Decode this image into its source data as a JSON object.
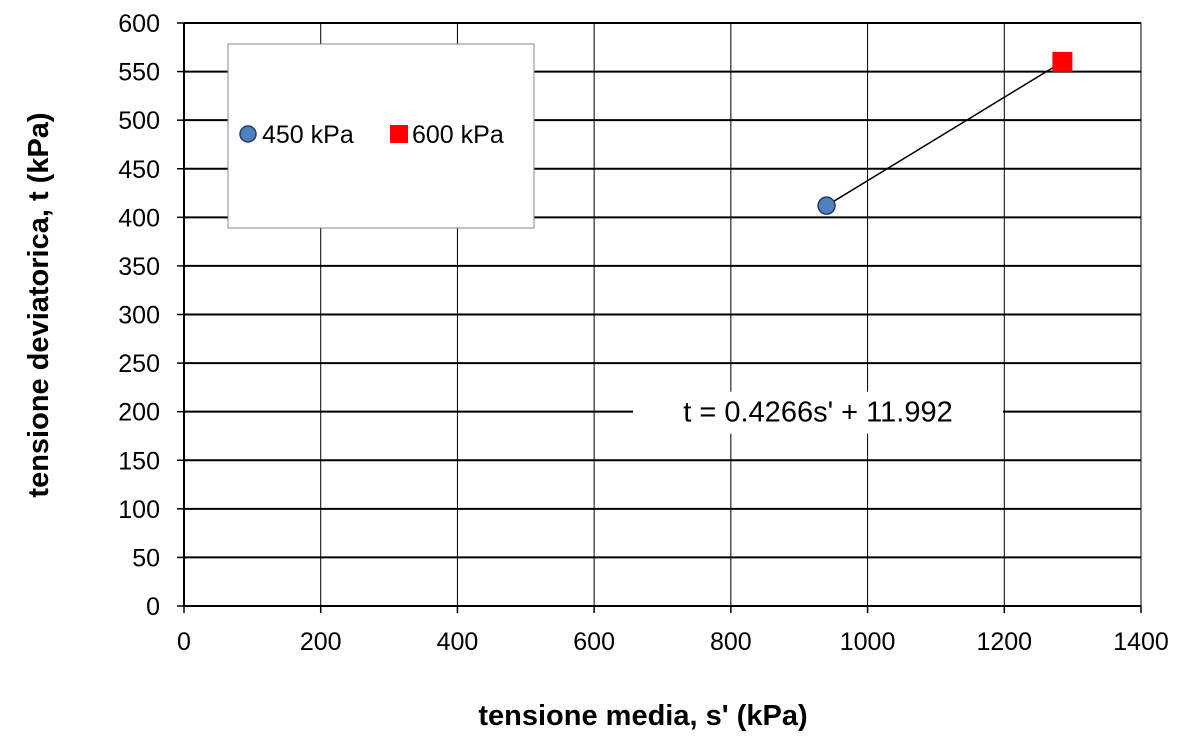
{
  "chart_data": {
    "type": "scatter",
    "title": "",
    "xlabel": "tensione media, s' (kPa)",
    "ylabel": "tensione deviatorica, t (kPa)",
    "xlim": [
      0,
      1400
    ],
    "ylim": [
      0,
      600
    ],
    "x_ticks": [
      0,
      200,
      400,
      600,
      800,
      1000,
      1200,
      1400
    ],
    "y_ticks": [
      0,
      50,
      100,
      150,
      200,
      250,
      300,
      350,
      400,
      450,
      500,
      550,
      600
    ],
    "grid": true,
    "legend_position": "top-left",
    "series": [
      {
        "name": "450 kPa",
        "marker": "circle",
        "color": "#4f81bd",
        "points": [
          {
            "x": 940,
            "y": 412
          }
        ]
      },
      {
        "name": "600 kPa",
        "marker": "square",
        "color": "#ff0000",
        "points": [
          {
            "x": 1285,
            "y": 560
          }
        ]
      }
    ],
    "trendline": {
      "equation": "t = 0.4266s' + 11.992",
      "slope": 0.4266,
      "intercept": 11.992,
      "x_range": [
        940,
        1285
      ]
    }
  }
}
